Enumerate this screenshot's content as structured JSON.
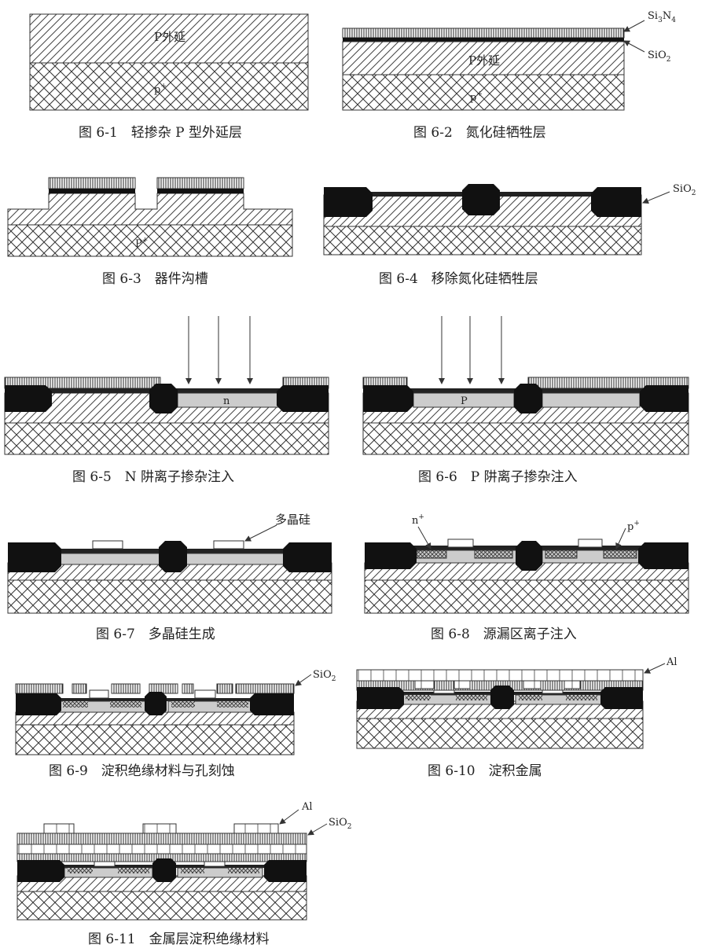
{
  "figures": [
    {
      "id": "6-1",
      "caption": "图 6-1　轻掺杂 P 型外延层",
      "labels": {
        "epi": "P外延",
        "sub": "p",
        "sup": "+"
      }
    },
    {
      "id": "6-2",
      "caption": "图 6-2　氮化硅牺牲层",
      "labels": {
        "epi": "P外延",
        "sub": "p",
        "sup": "+",
        "si3n4": "Si",
        "n3": "3",
        "n4": "N",
        "n4sub": "4",
        "sio2": "SiO",
        "o2": "2"
      }
    },
    {
      "id": "6-3",
      "caption": "图 6-3　器件沟槽",
      "labels": {
        "sub": "P",
        "sup": "+"
      }
    },
    {
      "id": "6-4",
      "caption": "图 6-4　移除氮化硅牺牲层",
      "labels": {
        "sio2": "SiO",
        "o2": "2"
      }
    },
    {
      "id": "6-5",
      "caption": "图 6-5　N 阱离子掺杂注入",
      "labels": {
        "well": "n"
      }
    },
    {
      "id": "6-6",
      "caption": "图 6-6　P 阱离子掺杂注入",
      "labels": {
        "well": "P"
      }
    },
    {
      "id": "6-7",
      "caption": "图 6-7　多晶硅生成",
      "labels": {
        "poly": "多晶硅"
      }
    },
    {
      "id": "6-8",
      "caption": "图 6-8　源漏区离子注入",
      "labels": {
        "np": "n",
        "pp": "p",
        "sup": "+"
      }
    },
    {
      "id": "6-9",
      "caption": "图 6-9　淀积绝缘材料与孔刻蚀",
      "labels": {
        "sio2": "SiO",
        "o2": "2"
      }
    },
    {
      "id": "6-10",
      "caption": "图 6-10　淀积金属",
      "labels": {
        "al": "Al"
      }
    },
    {
      "id": "6-11",
      "caption": "图 6-11　金属层淀积绝缘材料",
      "labels": {
        "al": "Al",
        "sio2": "SiO",
        "o2": "2"
      }
    }
  ]
}
